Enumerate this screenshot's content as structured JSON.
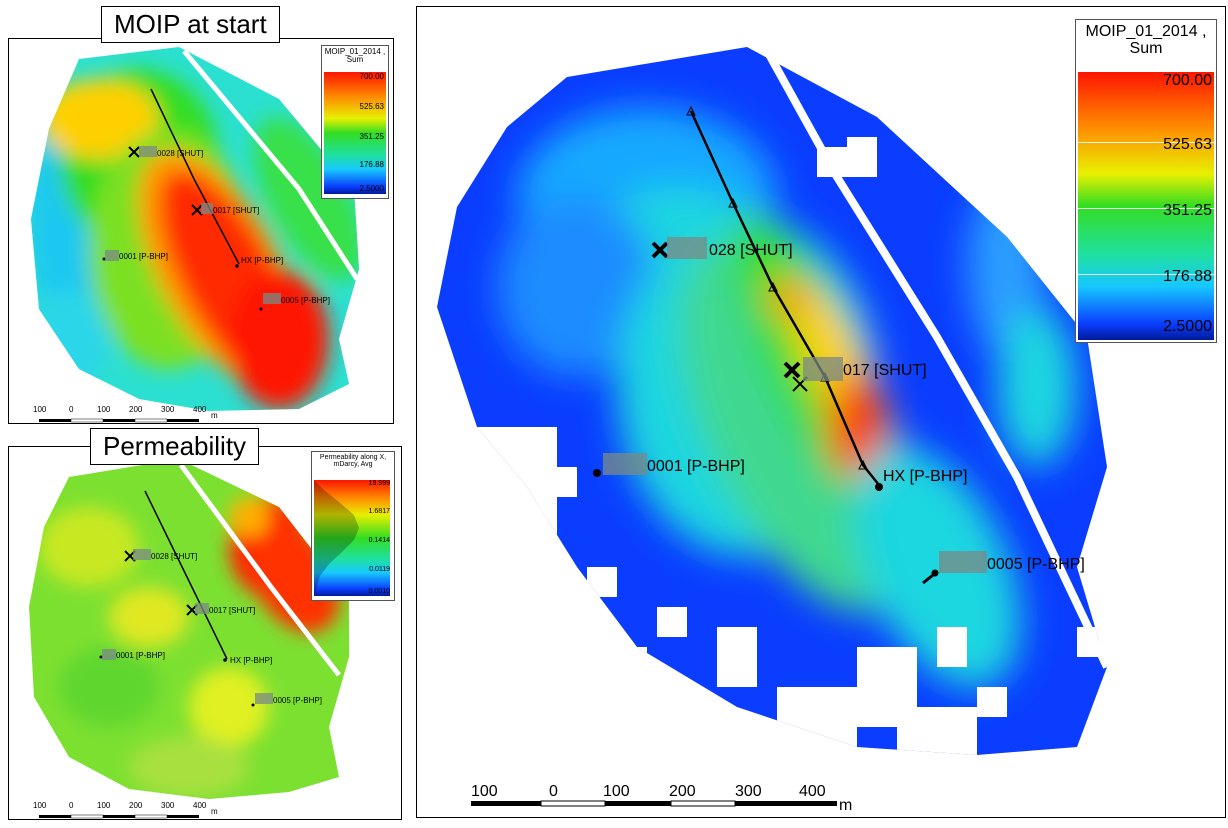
{
  "panels": {
    "moip_small": {
      "title": "MOIP at start",
      "legend": {
        "title": "MOIP_01_2014 , Sum",
        "ticks": [
          "700.00",
          "525.63",
          "351.25",
          "176.88",
          "2.5000"
        ]
      },
      "wells": {
        "w028": "0028 [SHUT]",
        "w017": "0017 [SHUT]",
        "w001": "0001 [P-BHP]",
        "whx": "HX [P-BHP]",
        "w005": "0005 [P-BHP]"
      },
      "scale": {
        "ticks": [
          "100",
          "0",
          "100",
          "200",
          "300",
          "400"
        ],
        "unit": "m"
      }
    },
    "perm_small": {
      "title": "Permeability",
      "legend": {
        "title": "Permeability along X, mDarcy, Avg",
        "ticks": [
          "19.999",
          "1.6817",
          "0.1414",
          "0.0119",
          "0.0010"
        ]
      },
      "wells": {
        "w028": "0028 [SHUT]",
        "w017": "0017 [SHUT]",
        "w001": "0001 [P-BHP]",
        "whx": "HX [P-BHP]",
        "w005": "0005 [P-BHP]"
      },
      "scale": {
        "ticks": [
          "100",
          "0",
          "100",
          "200",
          "300",
          "400"
        ],
        "unit": "m"
      }
    },
    "moip_large": {
      "legend": {
        "title": "MOIP_01_2014 , Sum",
        "ticks": [
          "700.00",
          "525.63",
          "351.25",
          "176.88",
          "2.5000"
        ]
      },
      "wells": {
        "w028": "028 [SHUT]",
        "w017": "017 [SHUT]",
        "w001": "0001 [P-BHP]",
        "whx": "HX [P-BHP]",
        "w005": "0005 [P-BHP]"
      },
      "scale": {
        "ticks": [
          "100",
          "0",
          "100",
          "200",
          "300",
          "400"
        ],
        "unit": "m"
      }
    }
  },
  "colors": {
    "red": "#ff1500",
    "orange": "#ff9a00",
    "yellow": "#ffee00",
    "green": "#33dd22",
    "cyan": "#1fd6e0",
    "blue": "#0a3dff",
    "navy": "#001a99"
  }
}
